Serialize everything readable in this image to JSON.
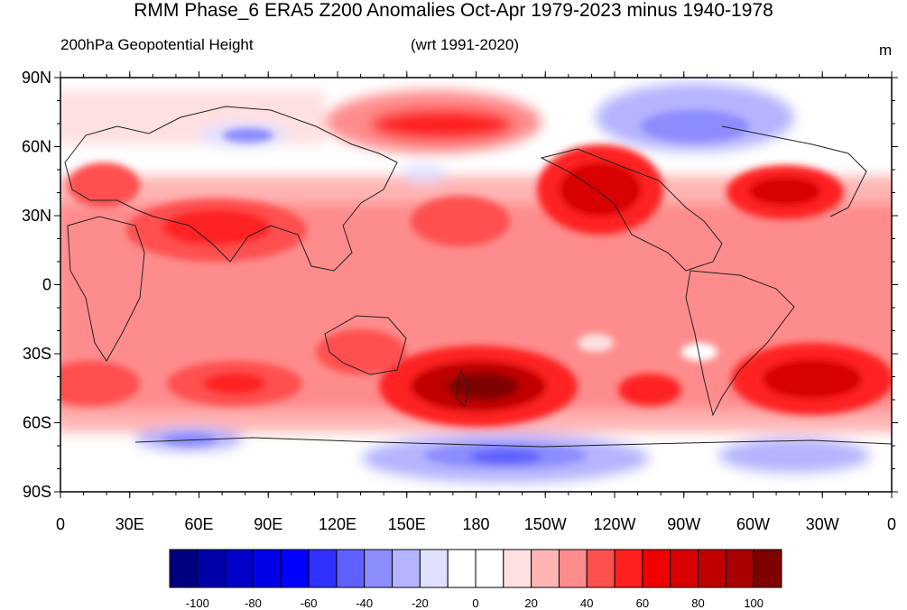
{
  "title": "RMM Phase_6 ERA5 Z200 Anomalies Oct-Apr 1979-2023 minus 1940-1978",
  "subtitle_left": "200hPa Geopotential Height",
  "subtitle_center": "(wrt 1991-2020)",
  "units": "m",
  "lat_ticks": [
    "90N",
    "60N",
    "30N",
    "0",
    "30S",
    "60S",
    "90S"
  ],
  "lon_ticks": [
    "0",
    "30E",
    "60E",
    "90E",
    "120E",
    "150E",
    "180",
    "150W",
    "120W",
    "90W",
    "60W",
    "30W",
    "0"
  ],
  "colorbar": {
    "labels": [
      "-100",
      "-80",
      "-60",
      "-40",
      "-20",
      "0",
      "20",
      "40",
      "60",
      "80",
      "100"
    ],
    "colors": [
      "#00007f",
      "#0000a8",
      "#0000c8",
      "#0000e6",
      "#0000ff",
      "#3030ff",
      "#6060ff",
      "#8c8cff",
      "#b4b4ff",
      "#e0e0ff",
      "#ffffff",
      "#ffffff",
      "#ffe0e0",
      "#ffb4b4",
      "#ff8c8c",
      "#ff5050",
      "#ff2020",
      "#f00000",
      "#d80000",
      "#c00000",
      "#a80000",
      "#7f0000"
    ]
  },
  "colors": {
    "background_anomaly": "#ff8c8c",
    "strong_positive": "#c00000",
    "peak_positive": "#7f0000",
    "negative": "#8c8cff",
    "strong_negative": "#6060ff"
  }
}
